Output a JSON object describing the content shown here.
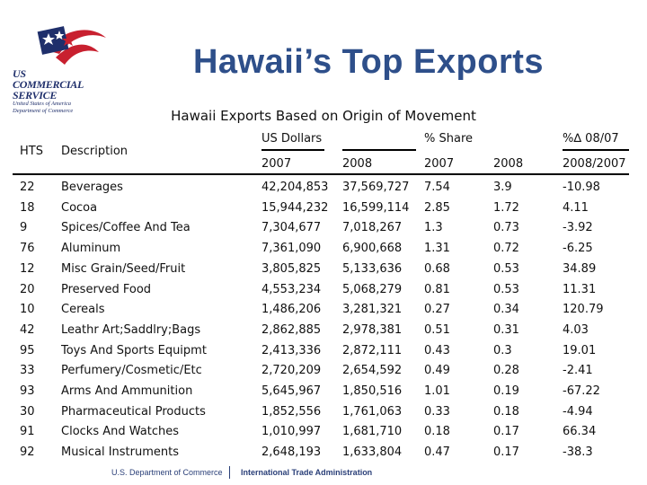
{
  "logo": {
    "line1": "US",
    "line2": "COMMERCIAL",
    "line3": "SERVICE",
    "line4": "United States of America",
    "line5": "Department of Commerce"
  },
  "title": "Hawaii’s Top Exports",
  "subtitle": "Hawaii Exports Based on Origin of Movement",
  "headers": {
    "hts": "HTS",
    "description": "Description",
    "us_dollars": "US Dollars",
    "pct_share": "% Share",
    "pct_change": "%∆ 08/07",
    "y2007_usd": "2007",
    "y2008_usd": "2008",
    "y2007_share": "2007",
    "y2008_share": "2008",
    "change_years": "2008/2007"
  },
  "rows": [
    {
      "hts": "22",
      "desc": "Beverages",
      "usd2007": "42,204,853",
      "usd2008": "37,569,727",
      "share2007": "7.54",
      "share2008": "3.9",
      "change": "-10.98"
    },
    {
      "hts": "18",
      "desc": "Cocoa",
      "usd2007": "15,944,232",
      "usd2008": "16,599,114",
      "share2007": "2.85",
      "share2008": "1.72",
      "change": "4.11"
    },
    {
      "hts": "9",
      "desc": "Spices/Coffee And Tea",
      "usd2007": "7,304,677",
      "usd2008": "7,018,267",
      "share2007": "1.3",
      "share2008": "0.73",
      "change": "-3.92"
    },
    {
      "hts": "76",
      "desc": "Aluminum",
      "usd2007": "7,361,090",
      "usd2008": "6,900,668",
      "share2007": "1.31",
      "share2008": "0.72",
      "change": "-6.25"
    },
    {
      "hts": "12",
      "desc": "Misc Grain/Seed/Fruit",
      "usd2007": "3,805,825",
      "usd2008": "5,133,636",
      "share2007": "0.68",
      "share2008": "0.53",
      "change": "34.89"
    },
    {
      "hts": "20",
      "desc": "Preserved Food",
      "usd2007": "4,553,234",
      "usd2008": "5,068,279",
      "share2007": "0.81",
      "share2008": "0.53",
      "change": "11.31"
    },
    {
      "hts": "10",
      "desc": "Cereals",
      "usd2007": "1,486,206",
      "usd2008": "3,281,321",
      "share2007": "0.27",
      "share2008": "0.34",
      "change": "120.79"
    },
    {
      "hts": "42",
      "desc": "Leathr Art;Saddlry;Bags",
      "usd2007": "2,862,885",
      "usd2008": "2,978,381",
      "share2007": "0.51",
      "share2008": "0.31",
      "change": "4.03"
    },
    {
      "hts": "95",
      "desc": "Toys And Sports Equipmt",
      "usd2007": "2,413,336",
      "usd2008": "2,872,111",
      "share2007": "0.43",
      "share2008": "0.3",
      "change": "19.01"
    },
    {
      "hts": "33",
      "desc": "Perfumery/Cosmetic/Etc",
      "usd2007": "2,720,209",
      "usd2008": "2,654,592",
      "share2007": "0.49",
      "share2008": "0.28",
      "change": "-2.41"
    },
    {
      "hts": "93",
      "desc": "Arms And Ammunition",
      "usd2007": "5,645,967",
      "usd2008": "1,850,516",
      "share2007": "1.01",
      "share2008": "0.19",
      "change": "-67.22"
    },
    {
      "hts": "30",
      "desc": "Pharmaceutical Products",
      "usd2007": "1,852,556",
      "usd2008": "1,761,063",
      "share2007": "0.33",
      "share2008": "0.18",
      "change": "-4.94"
    },
    {
      "hts": "91",
      "desc": "Clocks And Watches",
      "usd2007": "1,010,997",
      "usd2008": "1,681,710",
      "share2007": "0.18",
      "share2008": "0.17",
      "change": "66.34"
    },
    {
      "hts": "92",
      "desc": "Musical Instruments",
      "usd2007": "2,648,193",
      "usd2008": "1,633,804",
      "share2007": "0.47",
      "share2008": "0.17",
      "change": "-38.3"
    }
  ],
  "footer": {
    "left": "U.S. Department of Commerce",
    "right": "International Trade Administration"
  },
  "colors": {
    "title": "#2e4f8a",
    "logo_red": "#c8202f",
    "logo_blue": "#1f2f6b",
    "footer": "#2a3f78"
  }
}
